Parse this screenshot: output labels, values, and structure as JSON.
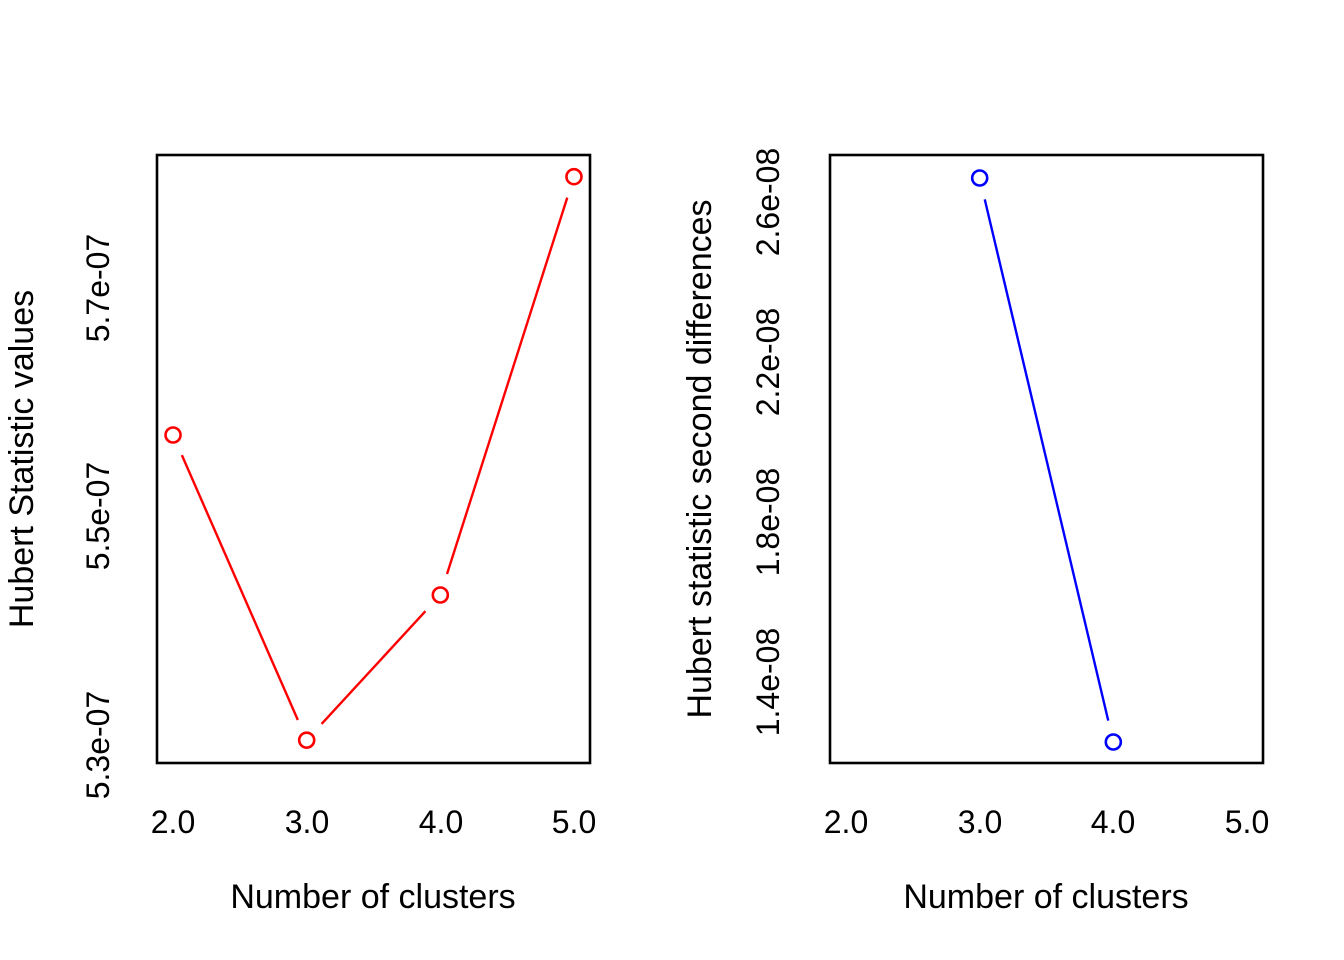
{
  "figure": {
    "background": "#ffffff",
    "text_color": "#000000"
  },
  "chart_data": [
    {
      "type": "line",
      "panel": "left",
      "xlabel": "Number of clusters",
      "ylabel": "Hubert Statistic values",
      "grid": false,
      "legend": "none",
      "marker": "open-circle",
      "line_style": "solid",
      "xlim": [
        1.88,
        5.12
      ],
      "ylim": [
        5.284e-07,
        5.816e-07
      ],
      "x_ticks": {
        "values": [
          2.0,
          3.0,
          4.0,
          5.0
        ],
        "labels": [
          "2.0",
          "3.0",
          "4.0",
          "5.0"
        ]
      },
      "y_ticks": {
        "values": [
          5.3e-07,
          5.5e-07,
          5.7e-07
        ],
        "labels": [
          "5.3e-07",
          "5.5e-07",
          "5.7e-07"
        ]
      },
      "series": [
        {
          "name": "Hubert statistic values",
          "color": "#ff0000",
          "x": [
            2,
            3,
            4,
            5
          ],
          "y": [
            5.571e-07,
            5.304e-07,
            5.431e-07,
            5.797e-07
          ]
        }
      ]
    },
    {
      "type": "line",
      "panel": "right",
      "xlabel": "Number of clusters",
      "ylabel": "Hubert statistic second differences",
      "grid": false,
      "legend": "none",
      "marker": "open-circle",
      "line_style": "solid",
      "xlim": [
        1.88,
        5.12
      ],
      "ylim": [
        1.1975e-08,
        2.7175e-08
      ],
      "x_ticks": {
        "values": [
          2.0,
          3.0,
          4.0,
          5.0
        ],
        "labels": [
          "2.0",
          "3.0",
          "4.0",
          "5.0"
        ]
      },
      "y_ticks": {
        "values": [
          1.4e-08,
          1.8e-08,
          2.2e-08,
          2.6e-08
        ],
        "labels": [
          "1.4e-08",
          "1.8e-08",
          "2.2e-08",
          "2.6e-08"
        ]
      },
      "series": [
        {
          "name": "Hubert statistic second differences",
          "color": "#0000ff",
          "x": [
            3,
            4
          ],
          "y": [
            2.66e-08,
            1.25e-08
          ]
        }
      ]
    }
  ]
}
